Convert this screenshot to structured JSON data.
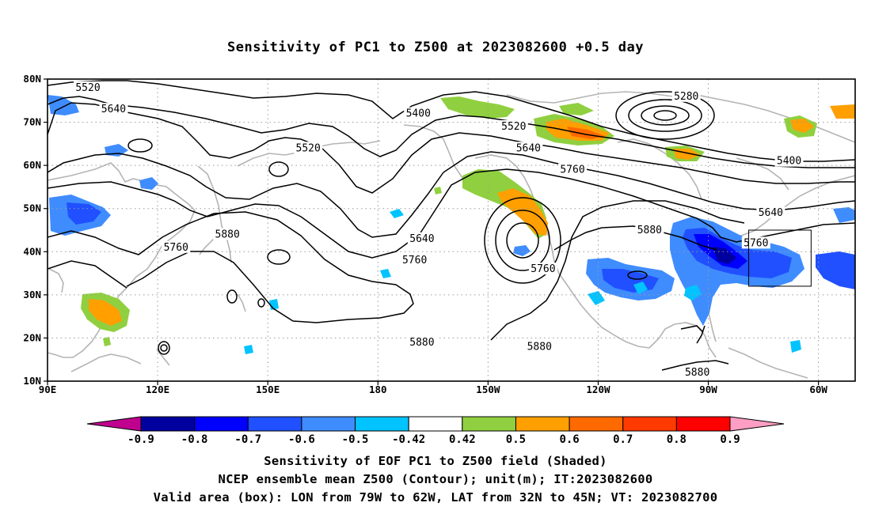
{
  "title": "Sensitivity of PC1 to Z500 at 2023082600 +0.5 day",
  "footer": {
    "line1": "Sensitivity of EOF PC1 to Z500 field (Shaded)",
    "line2": "NCEP ensemble mean Z500 (Contour); unit(m); IT:2023082600",
    "line3": "Valid area (box): LON from 79W to 62W, LAT from 32N to 45N; VT: 2023082700"
  },
  "map": {
    "lon_range": [
      90,
      310
    ],
    "lat_range": [
      10,
      80
    ],
    "lat_ticks": [
      {
        "value": 80,
        "label": "80N"
      },
      {
        "value": 70,
        "label": "70N"
      },
      {
        "value": 60,
        "label": "60N"
      },
      {
        "value": 50,
        "label": "50N"
      },
      {
        "value": 40,
        "label": "40N"
      },
      {
        "value": 30,
        "label": "30N"
      },
      {
        "value": 20,
        "label": "20N"
      },
      {
        "value": 10,
        "label": "10N"
      }
    ],
    "lon_ticks": [
      {
        "value": 90,
        "label": "90E"
      },
      {
        "value": 120,
        "label": "120E"
      },
      {
        "value": 150,
        "label": "150E"
      },
      {
        "value": 180,
        "label": "180"
      },
      {
        "value": 210,
        "label": "150W"
      },
      {
        "value": 240,
        "label": "120W"
      },
      {
        "value": 270,
        "label": "90W"
      },
      {
        "value": 300,
        "label": "60W"
      }
    ],
    "grid": true,
    "valid_box": {
      "lon_from": 281,
      "lon_to": 298,
      "lat_from": 32,
      "lat_to": 45
    },
    "contour_labels": [
      {
        "text": "5520",
        "lon": 101,
        "lat": 78
      },
      {
        "text": "5640",
        "lon": 108,
        "lat": 73
      },
      {
        "text": "5400",
        "lon": 191,
        "lat": 72
      },
      {
        "text": "5520",
        "lon": 161,
        "lat": 64
      },
      {
        "text": "5280",
        "lon": 264,
        "lat": 76
      },
      {
        "text": "5520",
        "lon": 217,
        "lat": 69
      },
      {
        "text": "5640",
        "lon": 221,
        "lat": 64
      },
      {
        "text": "5760",
        "lon": 233,
        "lat": 59
      },
      {
        "text": "5400",
        "lon": 292,
        "lat": 61
      },
      {
        "text": "5640",
        "lon": 287,
        "lat": 49
      },
      {
        "text": "5880",
        "lon": 254,
        "lat": 45
      },
      {
        "text": "5760",
        "lon": 283,
        "lat": 42
      },
      {
        "text": "5880",
        "lon": 139,
        "lat": 44
      },
      {
        "text": "5760",
        "lon": 125,
        "lat": 41
      },
      {
        "text": "5640",
        "lon": 192,
        "lat": 43
      },
      {
        "text": "5760",
        "lon": 190,
        "lat": 38
      },
      {
        "text": "5760",
        "lon": 225,
        "lat": 36
      },
      {
        "text": "5880",
        "lon": 192,
        "lat": 19
      },
      {
        "text": "5880",
        "lon": 224,
        "lat": 18
      },
      {
        "text": "5880",
        "lon": 267,
        "lat": 12
      }
    ]
  },
  "colorbar": {
    "labels": [
      "-0.9",
      "-0.8",
      "-0.7",
      "-0.6",
      "-0.5",
      "-0.42",
      "0.42",
      "0.5",
      "0.6",
      "0.7",
      "0.8",
      "0.9"
    ],
    "colors": [
      "#c0008f",
      "#00009f",
      "#0000ff",
      "#2050ff",
      "#3f8cff",
      "#00c3ff",
      "#ffffff",
      "#90d040",
      "#ff9f00",
      "#ff6a00",
      "#ff3a00",
      "#ff0000",
      "#ff9ec4"
    ]
  }
}
